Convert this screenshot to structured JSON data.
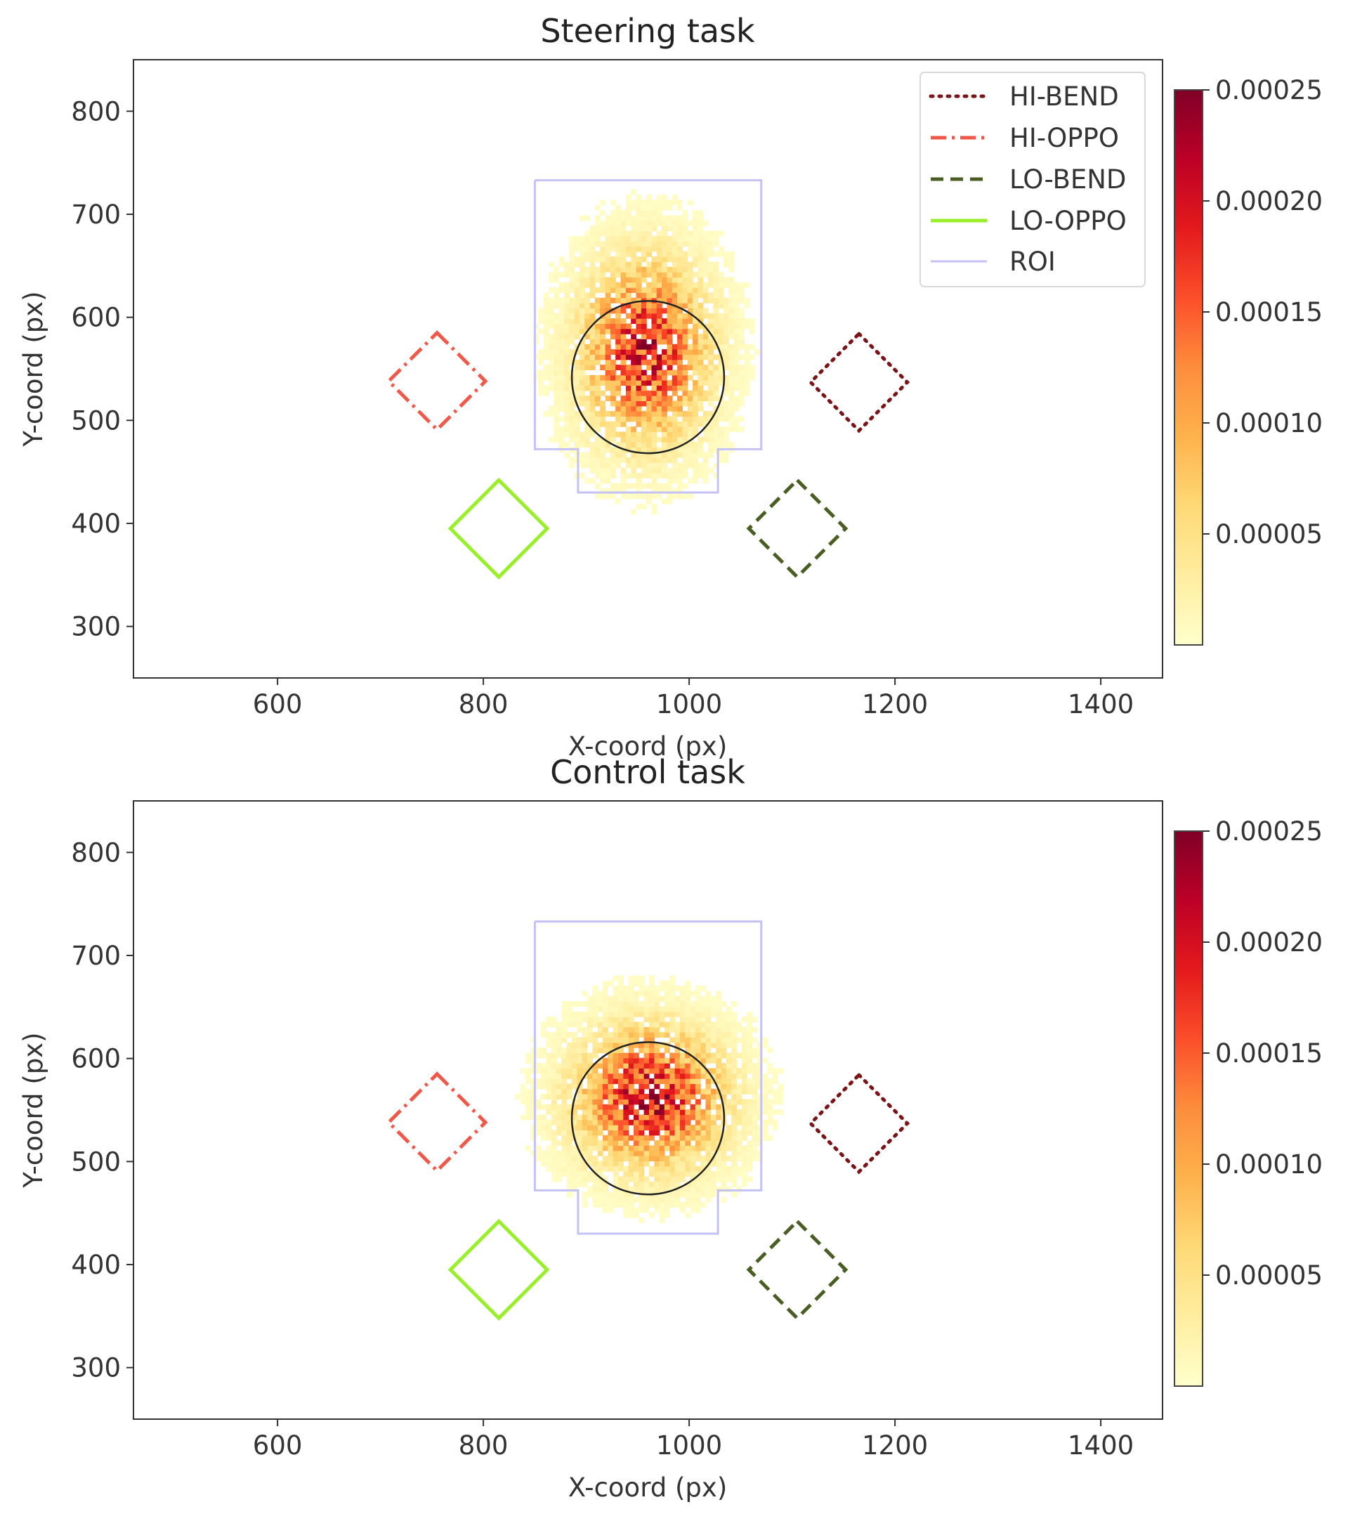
{
  "chart_data": [
    {
      "type": "heatmap",
      "title": "Steering task",
      "xlabel": "X-coord (px)",
      "ylabel": "Y-coord (px)",
      "xlim": [
        460,
        1460
      ],
      "ylim": [
        250,
        850
      ],
      "xticks": [
        "600",
        "800",
        "1000",
        "1200",
        "1400"
      ],
      "yticks": [
        "300",
        "400",
        "500",
        "600",
        "700",
        "800"
      ],
      "xtick_values": [
        600,
        800,
        1000,
        1200,
        1400
      ],
      "ytick_values": [
        300,
        400,
        500,
        600,
        700,
        800
      ],
      "legend": [
        "HI-BEND",
        "HI-OPPO",
        "LO-BEND",
        "LO-OPPO",
        "ROI"
      ],
      "legend_position": "top-right",
      "colorbar": {
        "ticks": [
          "0.00025",
          "0.00020",
          "0.00015",
          "0.00010",
          "0.00005"
        ],
        "tick_values": [
          0.00025,
          0.0002,
          0.00015,
          0.0001,
          5e-05
        ],
        "min": 0.0,
        "max": 0.00025
      },
      "targets": [
        {
          "name": "HI-BEND",
          "center": [
            1165,
            537
          ],
          "half_diag": 47,
          "style": "dotted",
          "color": "#7b1416"
        },
        {
          "name": "HI-OPPO",
          "center": [
            755,
            538
          ],
          "half_diag": 47,
          "style": "dashdot",
          "color": "#f0584a"
        },
        {
          "name": "LO-BEND",
          "center": [
            1105,
            395
          ],
          "half_diag": 47,
          "style": "dashed",
          "color": "#4a5e24"
        },
        {
          "name": "LO-OPPO",
          "center": [
            815,
            395
          ],
          "half_diag": 47,
          "style": "solid",
          "color": "#99f02a"
        }
      ],
      "roi": {
        "polygon": [
          [
            850,
            733
          ],
          [
            1070,
            733
          ],
          [
            1070,
            472
          ],
          [
            1028,
            472
          ],
          [
            1028,
            430
          ],
          [
            892,
            430
          ],
          [
            892,
            472
          ],
          [
            850,
            472
          ],
          [
            850,
            733
          ]
        ],
        "color": "#c4c2f5"
      },
      "fixation_circle": {
        "center": [
          960,
          542
        ],
        "radius": 74,
        "color": "#222222"
      },
      "density": {
        "center": [
          955,
          565
        ],
        "sd_x": 38,
        "sd_y": 55,
        "peak": 0.00018
      }
    },
    {
      "type": "heatmap",
      "title": "Control task",
      "xlabel": "X-coord (px)",
      "ylabel": "Y-coord (px)",
      "xlim": [
        460,
        1460
      ],
      "ylim": [
        250,
        850
      ],
      "xticks": [
        "600",
        "800",
        "1000",
        "1200",
        "1400"
      ],
      "yticks": [
        "300",
        "400",
        "500",
        "600",
        "700",
        "800"
      ],
      "xtick_values": [
        600,
        800,
        1000,
        1200,
        1400
      ],
      "ytick_values": [
        300,
        400,
        500,
        600,
        700,
        800
      ],
      "colorbar": {
        "ticks": [
          "0.00025",
          "0.00020",
          "0.00015",
          "0.00010",
          "0.00005"
        ],
        "tick_values": [
          0.00025,
          0.0002,
          0.00015,
          0.0001,
          5e-05
        ],
        "min": 0.0,
        "max": 0.00025
      },
      "targets": [
        {
          "name": "HI-BEND",
          "center": [
            1165,
            537
          ],
          "half_diag": 47,
          "style": "dotted",
          "color": "#7b1416"
        },
        {
          "name": "HI-OPPO",
          "center": [
            755,
            538
          ],
          "half_diag": 47,
          "style": "dashdot",
          "color": "#f0584a"
        },
        {
          "name": "LO-BEND",
          "center": [
            1105,
            395
          ],
          "half_diag": 47,
          "style": "dashed",
          "color": "#4a5e24"
        },
        {
          "name": "LO-OPPO",
          "center": [
            815,
            395
          ],
          "half_diag": 47,
          "style": "solid",
          "color": "#99f02a"
        }
      ],
      "roi": {
        "polygon": [
          [
            850,
            733
          ],
          [
            1070,
            733
          ],
          [
            1070,
            472
          ],
          [
            1028,
            472
          ],
          [
            1028,
            430
          ],
          [
            892,
            430
          ],
          [
            892,
            472
          ],
          [
            850,
            472
          ],
          [
            850,
            733
          ]
        ],
        "color": "#c4c2f5"
      },
      "fixation_circle": {
        "center": [
          960,
          542
        ],
        "radius": 74,
        "color": "#222222"
      },
      "density": {
        "center": [
          960,
          560
        ],
        "sd_x": 45,
        "sd_y": 42,
        "peak": 0.00019
      }
    }
  ]
}
